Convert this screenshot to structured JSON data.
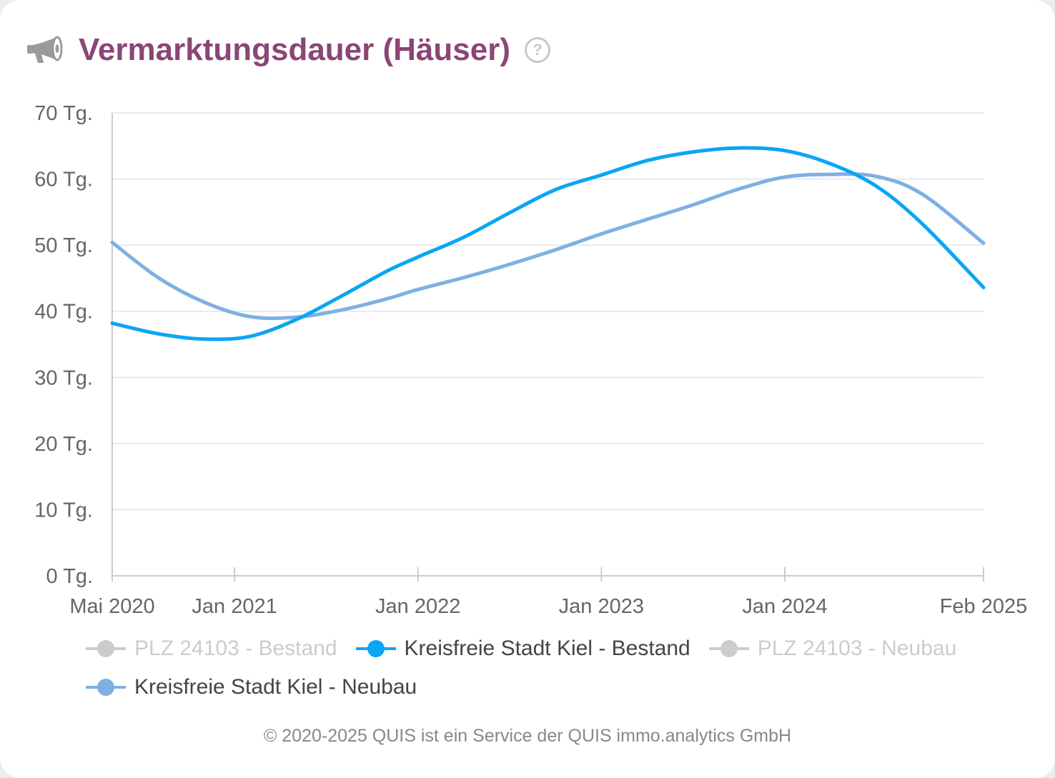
{
  "header": {
    "title": "Vermarktungsdauer (Häuser)",
    "icon": "megaphone-icon",
    "help_icon": "help-icon",
    "help_glyph": "?"
  },
  "colors": {
    "title": "#8b4576",
    "gridline": "#e6e9f2",
    "axis": "#cccccc",
    "inactive": "#cccccc"
  },
  "chart_data": {
    "type": "line",
    "title": "",
    "xlabel": "",
    "ylabel": "",
    "y_unit": "Tg.",
    "ylim": [
      0,
      70
    ],
    "y_ticks": [
      0,
      10,
      20,
      30,
      40,
      50,
      60,
      70
    ],
    "y_tick_labels": [
      "0 Tg.",
      "10 Tg.",
      "20 Tg.",
      "30 Tg.",
      "40 Tg.",
      "50 Tg.",
      "60 Tg.",
      "70 Tg."
    ],
    "xlim": [
      "2020-05",
      "2025-02"
    ],
    "x_ticks": [
      "2020-05",
      "2021-01",
      "2022-01",
      "2023-01",
      "2024-01",
      "2025-02"
    ],
    "x_tick_labels": [
      "Mai 2020",
      "Jan 2021",
      "Jan 2022",
      "Jan 2023",
      "Jan 2024",
      "Feb 2025"
    ],
    "grid": true,
    "legend_position": "bottom",
    "series": [
      {
        "name": "PLZ 24103 - Bestand",
        "color": "#cccccc",
        "visible": false,
        "x": [],
        "values": []
      },
      {
        "name": "Kreisfreie Stadt Kiel - Bestand",
        "color": "#0aa5f5",
        "visible": true,
        "x": [
          "2020-05",
          "2020-08",
          "2020-11",
          "2021-02",
          "2021-05",
          "2021-08",
          "2021-11",
          "2022-01",
          "2022-04",
          "2022-07",
          "2022-10",
          "2023-01",
          "2023-04",
          "2023-07",
          "2023-10",
          "2024-01",
          "2024-04",
          "2024-07",
          "2024-10",
          "2025-02"
        ],
        "values": [
          38.2,
          36.6,
          35.8,
          36.2,
          38.7,
          42.3,
          46.1,
          48.2,
          51.2,
          54.9,
          58.4,
          60.6,
          62.8,
          64.1,
          64.7,
          64.3,
          62.3,
          58.9,
          53.2,
          43.6
        ]
      },
      {
        "name": "PLZ 24103 - Neubau",
        "color": "#cccccc",
        "visible": false,
        "x": [],
        "values": []
      },
      {
        "name": "Kreisfreie Stadt Kiel - Neubau",
        "color": "#7fb0e2",
        "visible": true,
        "x": [
          "2020-05",
          "2020-08",
          "2020-11",
          "2021-02",
          "2021-05",
          "2021-08",
          "2021-11",
          "2022-01",
          "2022-04",
          "2022-07",
          "2022-10",
          "2023-01",
          "2023-04",
          "2023-07",
          "2023-10",
          "2024-01",
          "2024-04",
          "2024-07",
          "2024-10",
          "2025-02"
        ],
        "values": [
          50.4,
          45.1,
          41.4,
          39.2,
          39.1,
          40.2,
          41.9,
          43.3,
          45.1,
          47.1,
          49.3,
          51.7,
          53.9,
          56.1,
          58.5,
          60.3,
          60.7,
          60.4,
          57.7,
          50.3
        ]
      }
    ]
  },
  "legend": {
    "items": [
      {
        "label": "PLZ 24103 - Bestand",
        "active": false
      },
      {
        "label": "Kreisfreie Stadt Kiel - Bestand",
        "active": true
      },
      {
        "label": "PLZ 24103 - Neubau",
        "active": false
      },
      {
        "label": "Kreisfreie Stadt Kiel - Neubau",
        "active": true
      }
    ]
  },
  "footer": {
    "copyright": "© 2020-2025 QUIS ist ein Service der QUIS immo.analytics GmbH"
  }
}
